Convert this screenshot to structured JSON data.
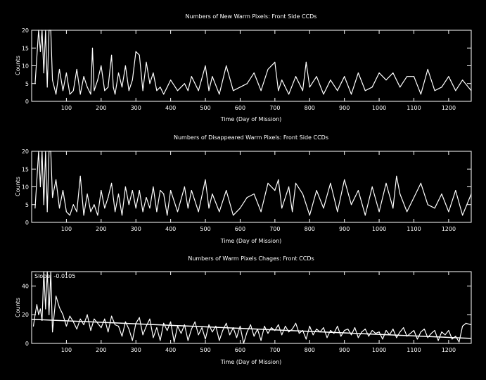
{
  "colors": {
    "background": "#000000",
    "foreground": "#ffffff"
  },
  "chart_data": [
    {
      "type": "line",
      "title": "Numbers of New Warm Pixels: Front Side CCDs",
      "xlabel": "Time (Day of Mission)",
      "ylabel": "Counts",
      "xlim": [
        0,
        1265
      ],
      "ylim": [
        0,
        20
      ],
      "xticks": [
        "100",
        "200",
        "300",
        "400",
        "500",
        "600",
        "700",
        "800",
        "900",
        "1000",
        "1100",
        "1200"
      ],
      "yticks": [
        "0",
        "5",
        "10",
        "15",
        "20"
      ],
      "grid": false,
      "series": [
        {
          "x": [
            10,
            20,
            25,
            30,
            35,
            40,
            45,
            50,
            55,
            60,
            70,
            80,
            90,
            100,
            110,
            120,
            130,
            140,
            150,
            160,
            170,
            175,
            180,
            190,
            200,
            210,
            220,
            230,
            235,
            240,
            250,
            260,
            270,
            280,
            290,
            300,
            310,
            320,
            330,
            340,
            350,
            360,
            370,
            380,
            390,
            400,
            420,
            440,
            450,
            460,
            480,
            500,
            510,
            520,
            540,
            560,
            580,
            600,
            620,
            640,
            660,
            680,
            700,
            710,
            720,
            740,
            760,
            780,
            790,
            800,
            820,
            840,
            860,
            880,
            900,
            920,
            940,
            960,
            980,
            1000,
            1020,
            1040,
            1060,
            1080,
            1100,
            1120,
            1140,
            1160,
            1180,
            1200,
            1220,
            1240,
            1265
          ],
          "y": [
            5,
            20,
            14,
            20,
            8,
            20,
            4,
            20,
            20,
            6,
            2,
            9,
            3,
            8,
            2,
            3,
            9,
            2,
            7,
            4,
            2,
            15,
            3,
            6,
            10,
            3,
            4,
            13,
            4,
            2,
            8,
            4,
            10,
            3,
            6,
            14,
            13,
            3,
            11,
            5,
            8,
            3,
            4,
            2,
            4,
            6,
            3,
            5,
            3,
            7,
            3,
            10,
            3,
            7,
            2,
            10,
            3,
            4,
            5,
            8,
            3,
            9,
            11,
            3,
            6,
            2,
            7,
            3,
            11,
            4,
            7,
            2,
            6,
            3,
            7,
            2,
            8,
            3,
            4,
            8,
            6,
            8,
            4,
            7,
            7,
            2,
            9,
            3,
            4,
            7,
            3,
            6,
            3
          ]
        }
      ]
    },
    {
      "type": "line",
      "title": "Numbers of Disappeared Warm Pixels: Front Side CCDs",
      "xlabel": "Time (Day of Mission)",
      "ylabel": "Counts",
      "xlim": [
        0,
        1265
      ],
      "ylim": [
        0,
        20
      ],
      "xticks": [
        "100",
        "200",
        "300",
        "400",
        "500",
        "600",
        "700",
        "800",
        "900",
        "1000",
        "1100",
        "1200"
      ],
      "yticks": [
        "0",
        "5",
        "10",
        "15",
        "20"
      ],
      "grid": false,
      "series": [
        {
          "x": [
            10,
            20,
            25,
            30,
            35,
            40,
            45,
            50,
            55,
            60,
            70,
            80,
            90,
            100,
            110,
            120,
            130,
            140,
            150,
            160,
            170,
            180,
            190,
            200,
            210,
            220,
            230,
            240,
            250,
            260,
            270,
            280,
            290,
            300,
            310,
            320,
            330,
            340,
            350,
            360,
            370,
            380,
            390,
            400,
            420,
            440,
            450,
            460,
            480,
            500,
            510,
            520,
            540,
            560,
            580,
            600,
            620,
            640,
            660,
            680,
            700,
            710,
            720,
            740,
            750,
            760,
            780,
            800,
            820,
            840,
            860,
            880,
            900,
            920,
            940,
            960,
            980,
            1000,
            1020,
            1040,
            1050,
            1060,
            1080,
            1100,
            1120,
            1140,
            1160,
            1180,
            1200,
            1220,
            1240,
            1265
          ],
          "y": [
            4,
            20,
            10,
            20,
            5,
            20,
            3,
            20,
            20,
            7,
            12,
            4,
            9,
            3,
            2,
            5,
            3,
            13,
            2,
            8,
            3,
            5,
            2,
            9,
            4,
            7,
            11,
            3,
            8,
            2,
            10,
            5,
            9,
            4,
            9,
            3,
            7,
            4,
            10,
            3,
            9,
            8,
            2,
            9,
            3,
            10,
            4,
            9,
            3,
            12,
            4,
            8,
            3,
            9,
            2,
            4,
            7,
            8,
            3,
            11,
            9,
            12,
            4,
            10,
            3,
            11,
            8,
            2,
            9,
            4,
            11,
            3,
            12,
            5,
            9,
            2,
            10,
            3,
            11,
            4,
            13,
            8,
            3,
            7,
            11,
            5,
            4,
            8,
            3,
            9,
            2,
            8
          ]
        }
      ]
    },
    {
      "type": "line",
      "title": "Numbers of Warm Pixels Chages: Front CCDs",
      "xlabel": "Time (Day of Mission)",
      "ylabel": "Counts",
      "annotation": "Slope: -0.0105",
      "xlim": [
        0,
        1265
      ],
      "ylim": [
        0,
        50
      ],
      "xticks": [
        "100",
        "200",
        "300",
        "400",
        "500",
        "600",
        "700",
        "800",
        "900",
        "1000",
        "1100",
        "1200"
      ],
      "yticks": [
        "0",
        "20",
        "40"
      ],
      "grid": false,
      "fit": {
        "x": [
          0,
          1265
        ],
        "y": [
          16.8,
          3.5
        ]
      },
      "series": [
        {
          "x": [
            5,
            10,
            15,
            20,
            25,
            30,
            35,
            40,
            45,
            50,
            55,
            60,
            70,
            80,
            90,
            100,
            110,
            120,
            130,
            140,
            150,
            160,
            170,
            180,
            190,
            200,
            210,
            220,
            230,
            240,
            250,
            260,
            270,
            280,
            290,
            300,
            310,
            320,
            330,
            340,
            350,
            360,
            370,
            380,
            390,
            400,
            410,
            420,
            430,
            440,
            450,
            460,
            470,
            480,
            490,
            500,
            510,
            520,
            530,
            540,
            550,
            560,
            570,
            580,
            590,
            600,
            610,
            620,
            630,
            640,
            650,
            660,
            670,
            680,
            690,
            700,
            710,
            720,
            730,
            740,
            750,
            760,
            770,
            780,
            790,
            800,
            810,
            820,
            830,
            840,
            850,
            860,
            870,
            880,
            890,
            900,
            910,
            920,
            930,
            940,
            950,
            960,
            970,
            980,
            990,
            1000,
            1010,
            1020,
            1030,
            1040,
            1050,
            1060,
            1070,
            1080,
            1090,
            1100,
            1110,
            1120,
            1130,
            1140,
            1150,
            1160,
            1170,
            1180,
            1190,
            1200,
            1210,
            1220,
            1230,
            1240,
            1250,
            1265
          ],
          "y": [
            12,
            20,
            27,
            20,
            24,
            16,
            50,
            24,
            50,
            20,
            50,
            8,
            33,
            25,
            20,
            12,
            19,
            15,
            10,
            17,
            13,
            20,
            9,
            17,
            14,
            11,
            17,
            8,
            19,
            13,
            12,
            5,
            15,
            10,
            2,
            14,
            18,
            6,
            12,
            17,
            4,
            11,
            2,
            14,
            9,
            15,
            1,
            12,
            7,
            13,
            2,
            10,
            15,
            6,
            11,
            3,
            13,
            8,
            12,
            2,
            9,
            14,
            6,
            11,
            4,
            12,
            0,
            8,
            13,
            5,
            10,
            2,
            12,
            7,
            11,
            9,
            13,
            6,
            12,
            8,
            10,
            14,
            7,
            9,
            3,
            12,
            6,
            10,
            8,
            11,
            4,
            9,
            7,
            12,
            5,
            9,
            10,
            6,
            11,
            4,
            8,
            10,
            5,
            9,
            7,
            8,
            3,
            9,
            6,
            10,
            4,
            8,
            11,
            5,
            7,
            9,
            3,
            8,
            10,
            4,
            7,
            9,
            2,
            8,
            6,
            9,
            3,
            5,
            1,
            12,
            14,
            13
          ]
        }
      ]
    }
  ]
}
